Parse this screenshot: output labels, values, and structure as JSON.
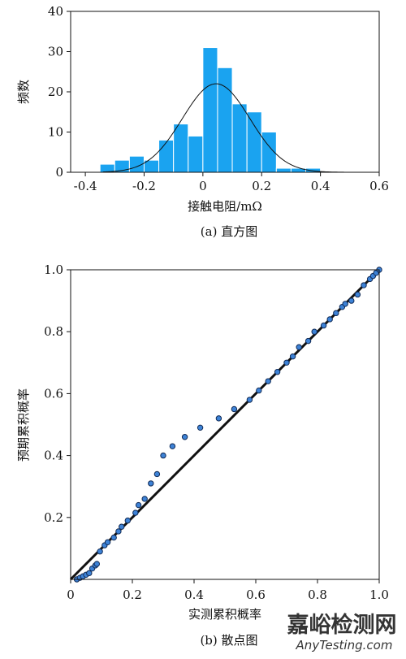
{
  "chart_data": [
    {
      "type": "bar",
      "subtype": "histogram-with-normal-fit",
      "caption": "(a) 直方图",
      "xlabel": "接触电阻/mΩ",
      "ylabel": "频数",
      "xlim": [
        -0.45,
        0.6
      ],
      "ylim": [
        0,
        40
      ],
      "xticks": [
        "-0.4",
        "-0.2",
        "0",
        "0.2",
        "0.4",
        "0.6"
      ],
      "yticks": [
        "0",
        "10",
        "20",
        "30",
        "40"
      ],
      "bar_color": "#1aa3f0",
      "bin_width": 0.05,
      "bins": [
        {
          "left": -0.35,
          "count": 2
        },
        {
          "left": -0.3,
          "count": 3
        },
        {
          "left": -0.25,
          "count": 4
        },
        {
          "left": -0.2,
          "count": 3
        },
        {
          "left": -0.15,
          "count": 8
        },
        {
          "left": -0.1,
          "count": 12
        },
        {
          "left": -0.05,
          "count": 9
        },
        {
          "left": 0.0,
          "count": 31
        },
        {
          "left": 0.05,
          "count": 26
        },
        {
          "left": 0.1,
          "count": 17
        },
        {
          "left": 0.15,
          "count": 15
        },
        {
          "left": 0.2,
          "count": 10
        },
        {
          "left": 0.25,
          "count": 1
        },
        {
          "left": 0.3,
          "count": 1
        },
        {
          "left": 0.35,
          "count": 1
        }
      ],
      "fit_curve": {
        "type": "normal",
        "mean": 0.045,
        "sd": 0.115,
        "peak": 22
      }
    },
    {
      "type": "scatter",
      "subtype": "probability-plot",
      "caption": "(b) 散点图",
      "xlabel": "实测累积概率",
      "ylabel": "预期累积概率",
      "xlim": [
        0,
        1
      ],
      "ylim": [
        0,
        1
      ],
      "xticks": [
        "0",
        "0.2",
        "0.4",
        "0.6",
        "0.8",
        "1.0"
      ],
      "yticks": [
        "0.2",
        "0.4",
        "0.6",
        "0.8",
        "1.0"
      ],
      "point_color": "#3d82d6",
      "reference_line": [
        [
          0,
          0
        ],
        [
          1,
          1
        ]
      ],
      "points": [
        [
          0.02,
          0.0
        ],
        [
          0.03,
          0.005
        ],
        [
          0.04,
          0.01
        ],
        [
          0.05,
          0.015
        ],
        [
          0.06,
          0.02
        ],
        [
          0.07,
          0.035
        ],
        [
          0.08,
          0.045
        ],
        [
          0.085,
          0.05
        ],
        [
          0.095,
          0.09
        ],
        [
          0.11,
          0.11
        ],
        [
          0.12,
          0.12
        ],
        [
          0.14,
          0.135
        ],
        [
          0.155,
          0.155
        ],
        [
          0.165,
          0.17
        ],
        [
          0.185,
          0.19
        ],
        [
          0.21,
          0.215
        ],
        [
          0.22,
          0.24
        ],
        [
          0.24,
          0.26
        ],
        [
          0.26,
          0.31
        ],
        [
          0.28,
          0.34
        ],
        [
          0.3,
          0.4
        ],
        [
          0.33,
          0.43
        ],
        [
          0.37,
          0.46
        ],
        [
          0.42,
          0.49
        ],
        [
          0.48,
          0.52
        ],
        [
          0.53,
          0.55
        ],
        [
          0.58,
          0.58
        ],
        [
          0.61,
          0.61
        ],
        [
          0.64,
          0.64
        ],
        [
          0.67,
          0.67
        ],
        [
          0.7,
          0.7
        ],
        [
          0.72,
          0.72
        ],
        [
          0.74,
          0.75
        ],
        [
          0.77,
          0.77
        ],
        [
          0.79,
          0.8
        ],
        [
          0.82,
          0.82
        ],
        [
          0.84,
          0.84
        ],
        [
          0.86,
          0.86
        ],
        [
          0.88,
          0.88
        ],
        [
          0.89,
          0.89
        ],
        [
          0.91,
          0.9
        ],
        [
          0.93,
          0.92
        ],
        [
          0.95,
          0.95
        ],
        [
          0.97,
          0.97
        ],
        [
          0.98,
          0.98
        ],
        [
          0.99,
          0.99
        ],
        [
          1.0,
          1.0
        ]
      ]
    }
  ],
  "watermark": {
    "text_cn": "嘉峪检测网",
    "text_en": "AnyTesting.com",
    "color": "#c8c8c8"
  }
}
